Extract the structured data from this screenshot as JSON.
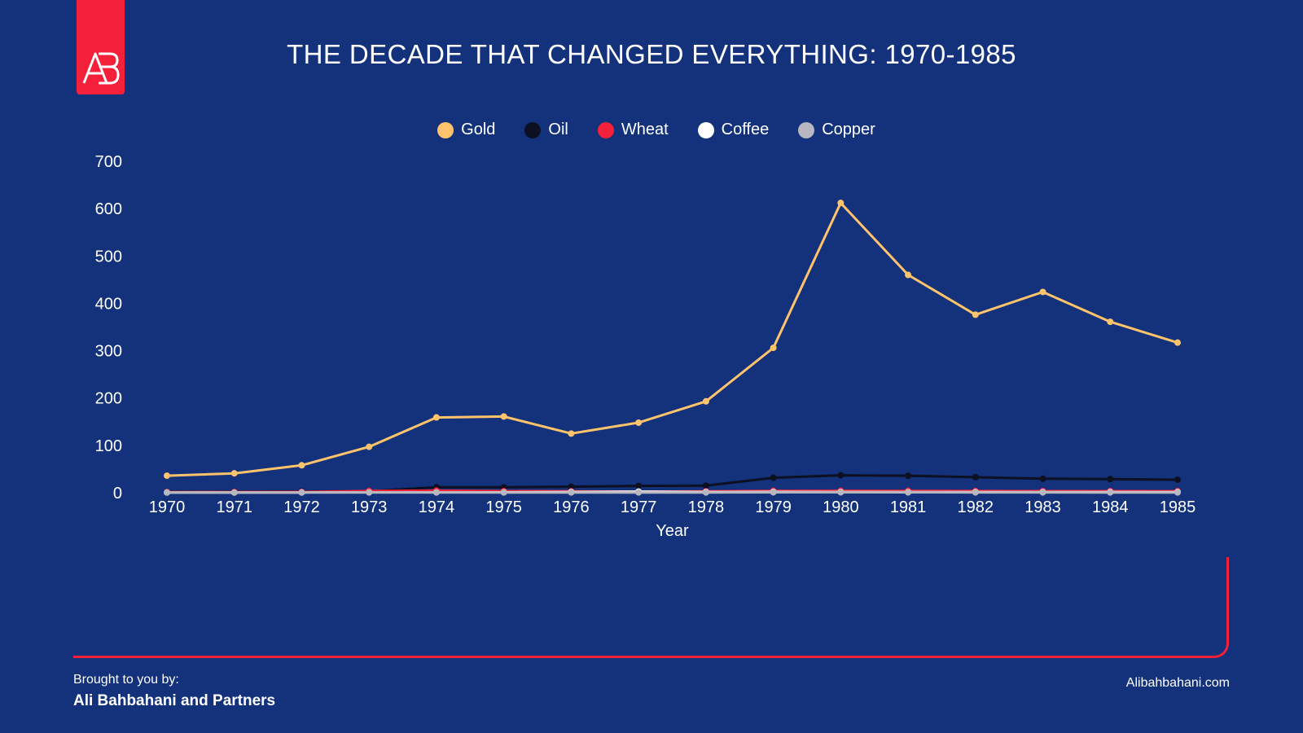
{
  "header": {
    "title": "THE DECADE THAT CHANGED EVERYTHING: 1970-1985"
  },
  "logo": {
    "text": "AB",
    "color": "#f5213a"
  },
  "footer": {
    "label": "Brought to you by:",
    "name": "Ali Bahbahani and Partners",
    "url": "Alibahbahani.com"
  },
  "chart_data": {
    "type": "line",
    "title": "THE DECADE THAT CHANGED EVERYTHING: 1970-1985",
    "xlabel": "Year",
    "ylabel": "",
    "x": [
      "1970",
      "1971",
      "1972",
      "1973",
      "1974",
      "1975",
      "1976",
      "1977",
      "1978",
      "1979",
      "1980",
      "1981",
      "1982",
      "1983",
      "1984",
      "1985"
    ],
    "ylim": [
      0,
      700
    ],
    "yticks": [
      0,
      100,
      200,
      300,
      400,
      500,
      600,
      700
    ],
    "grid": false,
    "legend_position": "top-center",
    "series": [
      {
        "name": "Gold",
        "color": "#ffc36b",
        "values": [
          36,
          41,
          58,
          97,
          159,
          161,
          125,
          148,
          193,
          306,
          612,
          460,
          376,
          424,
          361,
          317
        ]
      },
      {
        "name": "Oil",
        "color": "#0c1022",
        "values": [
          1.8,
          2.2,
          2.5,
          3.3,
          11.6,
          11.5,
          12.8,
          14.4,
          14.9,
          31.6,
          36.8,
          35.9,
          32.9,
          29.6,
          28.8,
          27.6
        ]
      },
      {
        "name": "Wheat",
        "color": "#f5213a",
        "values": [
          1.4,
          1.5,
          1.7,
          3.9,
          4.5,
          3.5,
          3.0,
          2.3,
          3.0,
          4.0,
          4.2,
          4.0,
          3.6,
          3.5,
          3.4,
          3.2
        ]
      },
      {
        "name": "Coffee",
        "color": "#ffffff",
        "values": [
          0.5,
          0.5,
          0.6,
          0.7,
          0.7,
          0.8,
          1.5,
          2.4,
          1.6,
          1.7,
          1.5,
          1.2,
          1.3,
          1.3,
          1.4,
          1.4
        ]
      },
      {
        "name": "Copper",
        "color": "#b7b7bf",
        "values": [
          0.6,
          0.5,
          0.5,
          0.8,
          0.9,
          0.6,
          0.6,
          0.6,
          0.6,
          0.9,
          1.0,
          0.8,
          0.7,
          0.7,
          0.6,
          0.6
        ]
      }
    ]
  }
}
